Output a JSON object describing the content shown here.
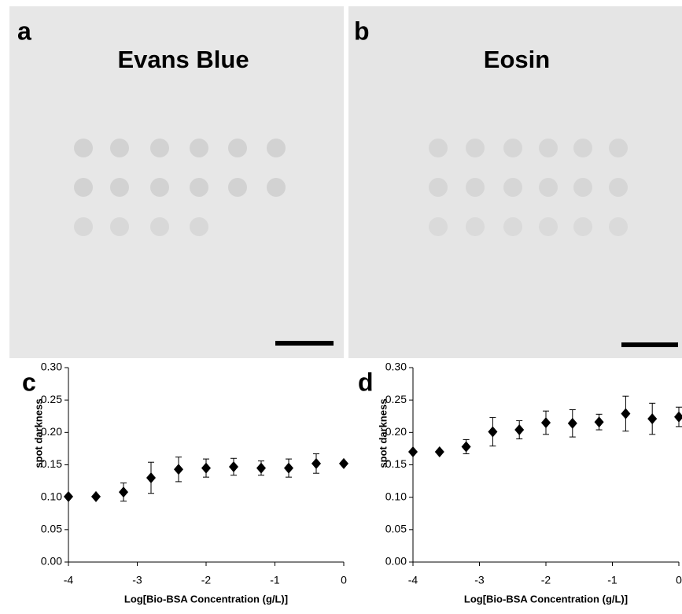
{
  "panels": [
    {
      "label": "a",
      "title": "Evans Blue"
    },
    {
      "label": "b",
      "title": "Eosin"
    }
  ],
  "chart_data": [
    {
      "type": "scatter",
      "panel_label": "c",
      "x": [
        -4,
        -3.6,
        -3.2,
        -2.8,
        -2.4,
        -2,
        -1.6,
        -1.2,
        -0.8,
        -0.4,
        0
      ],
      "series": [
        {
          "color": "#000000",
          "values": [
            0.101,
            0.101,
            0.108,
            0.13,
            0.143,
            0.145,
            0.147,
            0.145,
            0.145,
            0.152,
            0.152
          ],
          "errors": [
            0,
            0,
            0.014,
            0.024,
            0.019,
            0.014,
            0.013,
            0.011,
            0.014,
            0.015,
            0
          ]
        }
      ],
      "xlim": [
        -4,
        0
      ],
      "ylim": [
        0,
        0.3
      ],
      "xticks": [
        -4,
        -3,
        -2,
        -1,
        0
      ],
      "yticks": [
        {
          "value": 0,
          "label": "0.00"
        },
        {
          "value": 0.05,
          "label": "0.05"
        },
        {
          "value": 0.1,
          "label": "0.10"
        },
        {
          "value": 0.15,
          "label": "0.15"
        },
        {
          "value": 0.2,
          "label": "0.20"
        },
        {
          "value": 0.25,
          "label": "0.25"
        },
        {
          "value": 0.3,
          "label": "0.30"
        }
      ],
      "xlabel": "Log[Bio-BSA Concentration (g/L)]",
      "ylabel": "spot darkness"
    },
    {
      "type": "scatter",
      "panel_label": "d",
      "x": [
        -4,
        -3.6,
        -3.2,
        -2.8,
        -2.4,
        -2,
        -1.6,
        -1.2,
        -0.8,
        -0.4,
        0
      ],
      "series": [
        {
          "color": "#000000",
          "values": [
            0.17,
            0.17,
            0.178,
            0.201,
            0.204,
            0.215,
            0.214,
            0.216,
            0.229,
            0.221,
            0.224
          ],
          "errors": [
            0,
            0,
            0.011,
            0.022,
            0.014,
            0.018,
            0.021,
            0.012,
            0.027,
            0.024,
            0.015
          ]
        }
      ],
      "xlim": [
        -4,
        0
      ],
      "ylim": [
        0,
        0.3
      ],
      "xticks": [
        -4,
        -3,
        -2,
        -1,
        0
      ],
      "yticks": [
        {
          "value": 0,
          "label": "0.00"
        },
        {
          "value": 0.05,
          "label": "0.05"
        },
        {
          "value": 0.1,
          "label": "0.10"
        },
        {
          "value": 0.15,
          "label": "0.15"
        },
        {
          "value": 0.2,
          "label": "0.20"
        },
        {
          "value": 0.25,
          "label": "0.25"
        },
        {
          "value": 0.3,
          "label": "0.30"
        }
      ],
      "xlabel": "Log[Bio-BSA Concentration (g/L)]",
      "ylabel": "spot darkness"
    }
  ]
}
